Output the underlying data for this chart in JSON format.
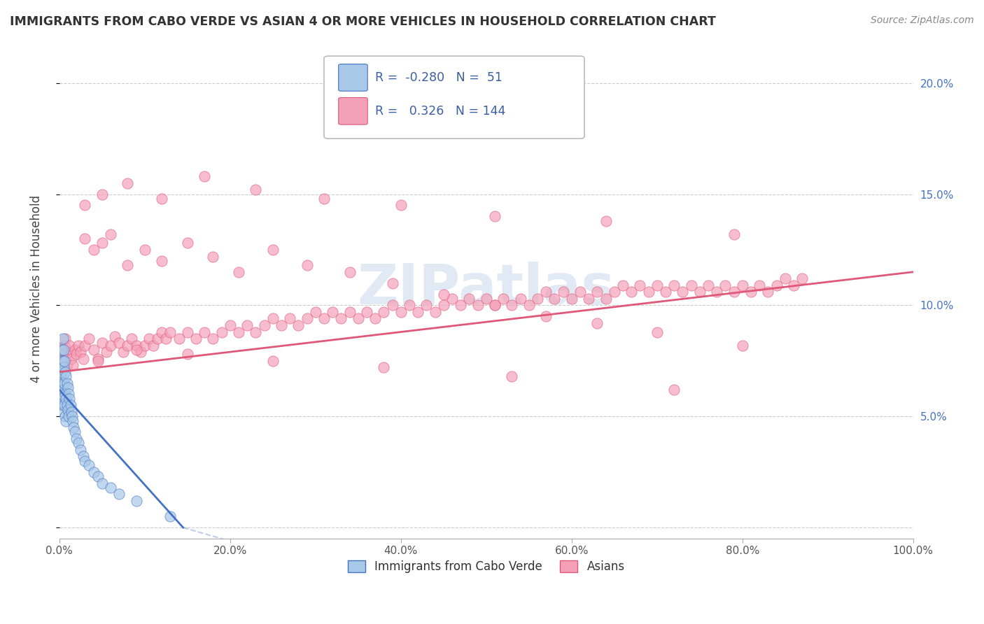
{
  "title": "IMMIGRANTS FROM CABO VERDE VS ASIAN 4 OR MORE VEHICLES IN HOUSEHOLD CORRELATION CHART",
  "source": "Source: ZipAtlas.com",
  "xlabel_ticks": [
    "0.0%",
    "20.0%",
    "40.0%",
    "60.0%",
    "80.0%",
    "100.0%"
  ],
  "ylabel_label": "4 or more Vehicles in Household",
  "legend_label1": "Immigrants from Cabo Verde",
  "legend_label2": "Asians",
  "r1": -0.28,
  "n1": 51,
  "r2": 0.326,
  "n2": 144,
  "color_blue": "#A8C8E8",
  "color_pink": "#F4A0B8",
  "color_blue_line": "#4472C4",
  "color_pink_line": "#E05878",
  "watermark_color": "#C8D8EC",
  "xmin": 0.0,
  "xmax": 1.0,
  "ymin": -0.005,
  "ymax": 0.22,
  "blue_x": [
    0.001,
    0.001,
    0.002,
    0.002,
    0.002,
    0.003,
    0.003,
    0.003,
    0.004,
    0.004,
    0.004,
    0.004,
    0.005,
    0.005,
    0.005,
    0.005,
    0.006,
    0.006,
    0.006,
    0.007,
    0.007,
    0.007,
    0.008,
    0.008,
    0.008,
    0.009,
    0.009,
    0.01,
    0.01,
    0.011,
    0.011,
    0.012,
    0.013,
    0.014,
    0.015,
    0.016,
    0.017,
    0.018,
    0.02,
    0.022,
    0.025,
    0.028,
    0.03,
    0.035,
    0.04,
    0.045,
    0.05,
    0.06,
    0.07,
    0.09,
    0.13
  ],
  "blue_y": [
    0.07,
    0.06,
    0.075,
    0.065,
    0.055,
    0.08,
    0.07,
    0.06,
    0.085,
    0.075,
    0.065,
    0.055,
    0.08,
    0.072,
    0.062,
    0.052,
    0.075,
    0.065,
    0.055,
    0.07,
    0.06,
    0.05,
    0.068,
    0.058,
    0.048,
    0.065,
    0.055,
    0.063,
    0.053,
    0.06,
    0.05,
    0.058,
    0.055,
    0.052,
    0.05,
    0.048,
    0.045,
    0.043,
    0.04,
    0.038,
    0.035,
    0.032,
    0.03,
    0.028,
    0.025,
    0.023,
    0.02,
    0.018,
    0.015,
    0.012,
    0.005
  ],
  "pink_x": [
    0.002,
    0.003,
    0.004,
    0.005,
    0.006,
    0.007,
    0.008,
    0.009,
    0.01,
    0.012,
    0.014,
    0.016,
    0.018,
    0.02,
    0.022,
    0.025,
    0.028,
    0.03,
    0.035,
    0.04,
    0.045,
    0.05,
    0.055,
    0.06,
    0.065,
    0.07,
    0.075,
    0.08,
    0.085,
    0.09,
    0.095,
    0.1,
    0.105,
    0.11,
    0.115,
    0.12,
    0.125,
    0.13,
    0.14,
    0.15,
    0.16,
    0.17,
    0.18,
    0.19,
    0.2,
    0.21,
    0.22,
    0.23,
    0.24,
    0.25,
    0.26,
    0.27,
    0.28,
    0.29,
    0.3,
    0.31,
    0.32,
    0.33,
    0.34,
    0.35,
    0.36,
    0.37,
    0.38,
    0.39,
    0.4,
    0.41,
    0.42,
    0.43,
    0.44,
    0.45,
    0.46,
    0.47,
    0.48,
    0.49,
    0.5,
    0.51,
    0.52,
    0.53,
    0.54,
    0.55,
    0.56,
    0.57,
    0.58,
    0.59,
    0.6,
    0.61,
    0.62,
    0.63,
    0.64,
    0.65,
    0.66,
    0.67,
    0.68,
    0.69,
    0.7,
    0.71,
    0.72,
    0.73,
    0.74,
    0.75,
    0.76,
    0.77,
    0.78,
    0.79,
    0.8,
    0.81,
    0.82,
    0.83,
    0.84,
    0.85,
    0.86,
    0.87,
    0.03,
    0.04,
    0.05,
    0.06,
    0.08,
    0.1,
    0.12,
    0.15,
    0.18,
    0.21,
    0.25,
    0.29,
    0.34,
    0.39,
    0.45,
    0.51,
    0.57,
    0.63,
    0.7,
    0.8,
    0.03,
    0.05,
    0.08,
    0.12,
    0.17,
    0.23,
    0.31,
    0.4,
    0.51,
    0.64,
    0.79,
    0.045,
    0.09,
    0.15,
    0.25,
    0.38,
    0.53,
    0.72
  ],
  "pink_y": [
    0.075,
    0.072,
    0.08,
    0.078,
    0.082,
    0.085,
    0.076,
    0.073,
    0.079,
    0.082,
    0.076,
    0.073,
    0.08,
    0.078,
    0.082,
    0.079,
    0.076,
    0.082,
    0.085,
    0.08,
    0.076,
    0.083,
    0.079,
    0.082,
    0.086,
    0.083,
    0.079,
    0.082,
    0.085,
    0.082,
    0.079,
    0.082,
    0.085,
    0.082,
    0.085,
    0.088,
    0.085,
    0.088,
    0.085,
    0.088,
    0.085,
    0.088,
    0.085,
    0.088,
    0.091,
    0.088,
    0.091,
    0.088,
    0.091,
    0.094,
    0.091,
    0.094,
    0.091,
    0.094,
    0.097,
    0.094,
    0.097,
    0.094,
    0.097,
    0.094,
    0.097,
    0.094,
    0.097,
    0.1,
    0.097,
    0.1,
    0.097,
    0.1,
    0.097,
    0.1,
    0.103,
    0.1,
    0.103,
    0.1,
    0.103,
    0.1,
    0.103,
    0.1,
    0.103,
    0.1,
    0.103,
    0.106,
    0.103,
    0.106,
    0.103,
    0.106,
    0.103,
    0.106,
    0.103,
    0.106,
    0.109,
    0.106,
    0.109,
    0.106,
    0.109,
    0.106,
    0.109,
    0.106,
    0.109,
    0.106,
    0.109,
    0.106,
    0.109,
    0.106,
    0.109,
    0.106,
    0.109,
    0.106,
    0.109,
    0.112,
    0.109,
    0.112,
    0.13,
    0.125,
    0.128,
    0.132,
    0.118,
    0.125,
    0.12,
    0.128,
    0.122,
    0.115,
    0.125,
    0.118,
    0.115,
    0.11,
    0.105,
    0.1,
    0.095,
    0.092,
    0.088,
    0.082,
    0.145,
    0.15,
    0.155,
    0.148,
    0.158,
    0.152,
    0.148,
    0.145,
    0.14,
    0.138,
    0.132,
    0.075,
    0.08,
    0.078,
    0.075,
    0.072,
    0.068,
    0.062
  ]
}
